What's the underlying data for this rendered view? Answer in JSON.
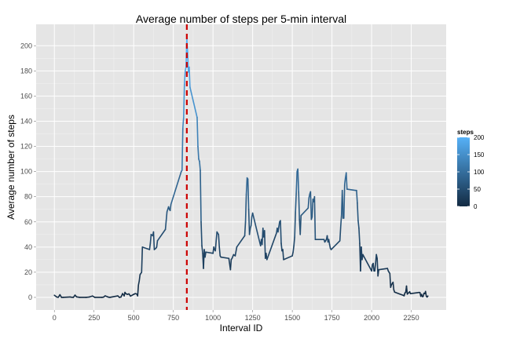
{
  "chart_data": {
    "type": "line",
    "title": "Average number of steps per 5-min interval",
    "xlabel": "Interval ID",
    "ylabel": "Average number of steps",
    "xlim": [
      -115,
      2470
    ],
    "ylim": [
      -10,
      217
    ],
    "x_ticks": [
      0,
      250,
      500,
      750,
      1000,
      1250,
      1500,
      1750,
      2000,
      2250
    ],
    "y_ticks": [
      0,
      20,
      40,
      60,
      80,
      100,
      120,
      140,
      160,
      180,
      200
    ],
    "grid": true,
    "legend": {
      "title": "steps",
      "position": "right",
      "ticks": [
        0,
        50,
        100,
        150,
        200
      ],
      "color_low": "#132B43",
      "color_high": "#56B1F7"
    },
    "vline": {
      "x": 835,
      "color": "#CC0000",
      "style": "dashed"
    },
    "series": [
      {
        "x": [
          0,
          15,
          25,
          35,
          45,
          55,
          100,
          110,
          120,
          130,
          140,
          150,
          160,
          200,
          220,
          240,
          255,
          300,
          310,
          320,
          340,
          350,
          400,
          410,
          420,
          430,
          440,
          445,
          450,
          460,
          470,
          480,
          500,
          510,
          520,
          525,
          530,
          535,
          540,
          550,
          555,
          600,
          605,
          610,
          620,
          625,
          630,
          640,
          645,
          650,
          700,
          705,
          710,
          720,
          725,
          730,
          735,
          800,
          805,
          810,
          815,
          820,
          825,
          830,
          835,
          840,
          845,
          850,
          855,
          900,
          905,
          910,
          915,
          920,
          925,
          930,
          935,
          940,
          945,
          950,
          955,
          1000,
          1005,
          1010,
          1015,
          1020,
          1025,
          1030,
          1035,
          1040,
          1045,
          1050,
          1100,
          1110,
          1115,
          1120,
          1130,
          1140,
          1150,
          1200,
          1205,
          1210,
          1215,
          1220,
          1225,
          1230,
          1235,
          1240,
          1245,
          1250,
          1300,
          1305,
          1310,
          1315,
          1320,
          1325,
          1330,
          1335,
          1340,
          1400,
          1405,
          1410,
          1415,
          1420,
          1425,
          1430,
          1435,
          1440,
          1445,
          1500,
          1505,
          1510,
          1515,
          1520,
          1525,
          1530,
          1535,
          1540,
          1545,
          1550,
          1555,
          1600,
          1605,
          1610,
          1615,
          1620,
          1625,
          1630,
          1635,
          1640,
          1645,
          1700,
          1705,
          1710,
          1715,
          1720,
          1725,
          1730,
          1735,
          1740,
          1745,
          1800,
          1805,
          1810,
          1815,
          1820,
          1825,
          1830,
          1835,
          1840,
          1845,
          1900,
          1905,
          1910,
          1915,
          1920,
          1925,
          1930,
          1935,
          1940,
          1945,
          2000,
          2005,
          2010,
          2015,
          2020,
          2025,
          2030,
          2035,
          2040,
          2045,
          2100,
          2105,
          2110,
          2115,
          2120,
          2125,
          2130,
          2135,
          2140,
          2145,
          2200,
          2205,
          2210,
          2215,
          2220,
          2225,
          2230,
          2235,
          2240,
          2245,
          2300,
          2305,
          2310,
          2315,
          2320,
          2325,
          2330,
          2335,
          2340,
          2345,
          2350,
          2355
        ],
        "y": [
          1.7,
          0.3,
          0.1,
          2.1,
          0.0,
          0.0,
          0.3,
          0.1,
          0.0,
          1.8,
          0.4,
          0.2,
          0.0,
          0.0,
          0.3,
          1.1,
          0.0,
          0.0,
          0.2,
          1.2,
          0.2,
          0.0,
          1.2,
          0.0,
          0.3,
          3.0,
          1.2,
          4.0,
          3.0,
          2.4,
          2.8,
          1.0,
          2.4,
          3.0,
          2.6,
          1.2,
          9.8,
          13.0,
          18.0,
          20.0,
          40.0,
          38.0,
          43.0,
          50.0,
          49.0,
          52.0,
          38.0,
          39.0,
          40.0,
          45.0,
          54.0,
          61.0,
          68.0,
          72.0,
          70.0,
          69.0,
          74.0,
          100.0,
          101.0,
          135.0,
          143.0,
          170.0,
          180.0,
          183.0,
          206.0,
          195.0,
          179.0,
          183.0,
          167.0,
          143.0,
          120.0,
          110.0,
          108.0,
          101.0,
          60.0,
          41.0,
          35.0,
          23.0,
          38.0,
          32.0,
          36.0,
          35.0,
          40.0,
          38.0,
          37.0,
          45.0,
          52.0,
          51.0,
          50.0,
          40.0,
          33.0,
          32.0,
          31.0,
          22.0,
          30.0,
          31.0,
          34.0,
          33.0,
          40.0,
          49.0,
          60.0,
          82.0,
          95.0,
          94.0,
          70.0,
          50.0,
          55.0,
          57.0,
          64.0,
          67.0,
          41.0,
          46.0,
          42.0,
          55.0,
          48.0,
          53.0,
          31.0,
          35.0,
          30.0,
          51.0,
          55.0,
          52.0,
          56.0,
          60.0,
          61.0,
          43.0,
          37.0,
          38.0,
          30.0,
          33.0,
          36.0,
          41.0,
          48.0,
          68.0,
          83.0,
          100.0,
          102.0,
          84.0,
          62.0,
          50.0,
          65.0,
          71.0,
          79.0,
          82.0,
          84.0,
          62.0,
          64.0,
          78.0,
          76.0,
          80.0,
          46.0,
          46.0,
          44.0,
          45.0,
          46.0,
          49.0,
          44.0,
          46.0,
          42.0,
          39.0,
          38.0,
          45.0,
          56.0,
          65.0,
          85.0,
          63.0,
          63.0,
          90.0,
          95.0,
          99.0,
          86.0,
          85.0,
          85.0,
          75.0,
          61.0,
          55.0,
          43.0,
          21.0,
          40.0,
          30.0,
          34.0,
          21.0,
          26.0,
          27.0,
          21.0,
          21.0,
          27.0,
          34.0,
          31.0,
          17.0,
          22.0,
          23.0,
          21.0,
          20.0,
          19.0,
          8.0,
          10.0,
          11.0,
          12.0,
          6.0,
          4.2,
          1.6,
          1.3,
          3.5,
          4.1,
          9.0,
          2.6,
          3.3,
          3.8,
          4.5,
          3.0,
          3.9,
          3.8,
          0.8,
          2.4,
          0.6,
          0.7,
          3.3,
          3.0,
          4.7,
          0.8,
          0.3,
          1.1
        ],
        "color_scale": true
      }
    ]
  }
}
